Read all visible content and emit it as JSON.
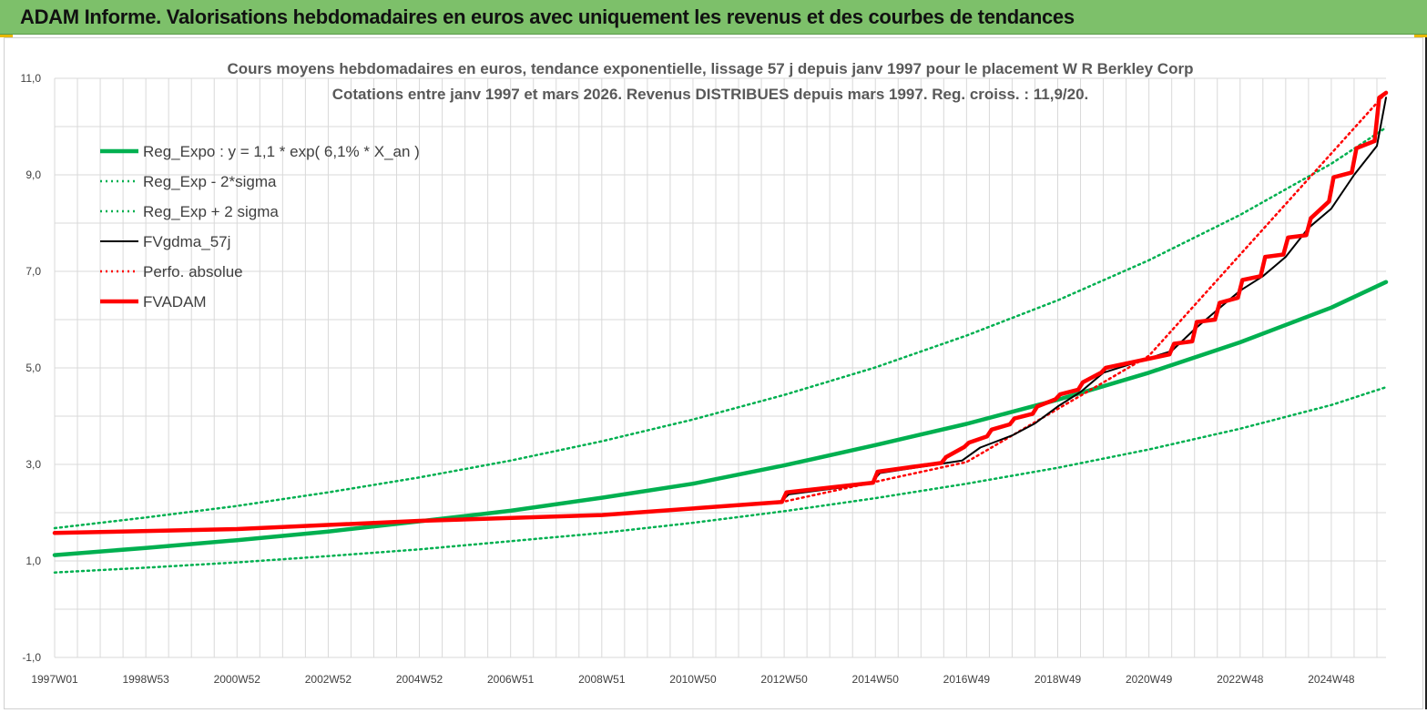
{
  "header": {
    "title": "ADAM Informe. Valorisations hebdomadaires en euros avec uniquement les revenus et des courbes de tendances"
  },
  "chart_data": {
    "type": "line",
    "title": "Cours moyens hebdomadaires en euros, tendance exponentielle, lissage 57 j depuis janv 1997 pour le placement W R Berkley Corp",
    "subtitle": "Cotations entre janv 1997 et mars 2026. Revenus DISTRIBUES depuis mars 1997. Reg. croiss. : 11,9/20.",
    "xlabel": "",
    "ylabel": "",
    "ylim": [
      -1.0,
      11.0
    ],
    "xlim": [
      0,
      29.2
    ],
    "y_ticks": [
      "-1,0",
      "1,0",
      "3,0",
      "5,0",
      "7,0",
      "9,0",
      "11,0"
    ],
    "y_tick_values": [
      -1,
      1,
      3,
      5,
      7,
      9,
      11
    ],
    "x_ticks": [
      "1997W01",
      "1998W53",
      "2000W52",
      "2002W52",
      "2004W52",
      "2006W51",
      "2008W51",
      "2010W50",
      "2012W50",
      "2014W50",
      "2016W49",
      "2018W49",
      "2020W49",
      "2022W48",
      "2024W48"
    ],
    "x_tick_values": [
      0,
      2,
      4,
      6,
      8,
      10,
      12,
      14,
      16,
      18,
      20,
      22,
      24,
      26,
      28
    ],
    "grid": true,
    "legend_position": "top-left",
    "series": [
      {
        "name": "Reg_Expo : y = 1,1 * exp( 6,1% *  X_an )",
        "color": "#00b050",
        "style": "solid-thick",
        "x": [
          0,
          2,
          4,
          6,
          8,
          10,
          12,
          14,
          16,
          18,
          20,
          22,
          24,
          26,
          28,
          29.2
        ],
        "y": [
          1.12,
          1.27,
          1.43,
          1.61,
          1.82,
          2.04,
          2.31,
          2.6,
          2.98,
          3.4,
          3.84,
          4.34,
          4.9,
          5.53,
          6.25,
          6.78
        ]
      },
      {
        "name": "Reg_Exp - 2*sigma",
        "color": "#00b050",
        "style": "dotted",
        "x": [
          0,
          2,
          4,
          6,
          8,
          10,
          12,
          14,
          16,
          18,
          20,
          22,
          24,
          26,
          28,
          29.2
        ],
        "y": [
          0.76,
          0.86,
          0.97,
          1.1,
          1.24,
          1.41,
          1.58,
          1.79,
          2.03,
          2.3,
          2.6,
          2.93,
          3.31,
          3.74,
          4.23,
          4.6
        ]
      },
      {
        "name": "Reg_Exp + 2 sigma",
        "color": "#00b050",
        "style": "dotted",
        "x": [
          0,
          2,
          4,
          6,
          8,
          10,
          12,
          14,
          16,
          18,
          20,
          22,
          24,
          26,
          28,
          29.2
        ],
        "y": [
          1.68,
          1.9,
          2.14,
          2.42,
          2.73,
          3.08,
          3.48,
          3.93,
          4.44,
          5.01,
          5.67,
          6.4,
          7.23,
          8.17,
          9.23,
          9.98
        ]
      },
      {
        "name": "FVgdma_57j",
        "color": "#000000",
        "style": "solid",
        "x": [
          0,
          4,
          8,
          12,
          15.9,
          16.1,
          17.9,
          18.1,
          19.9,
          20.3,
          21,
          21.5,
          22,
          22.5,
          23,
          23.5,
          24.5,
          25,
          25.5,
          26,
          26.5,
          27,
          27.5,
          28,
          28.5,
          29,
          29.2
        ],
        "y": [
          1.58,
          1.66,
          1.83,
          1.95,
          2.2,
          2.38,
          2.6,
          2.82,
          3.08,
          3.35,
          3.6,
          3.85,
          4.2,
          4.5,
          4.9,
          5.05,
          5.35,
          5.8,
          6.2,
          6.6,
          6.9,
          7.3,
          7.9,
          8.3,
          9.0,
          9.6,
          10.6
        ]
      },
      {
        "name": "Perfo. absolue",
        "color": "#ff0000",
        "style": "dotted",
        "x": [
          0,
          4,
          8,
          12,
          16,
          20,
          24,
          29.2
        ],
        "y": [
          1.58,
          1.67,
          1.84,
          1.96,
          2.23,
          3.05,
          5.25,
          10.7
        ]
      },
      {
        "name": "FVADAM",
        "color": "#ff0000",
        "style": "solid-thick",
        "x": [
          0,
          4,
          8,
          12,
          15.95,
          16.05,
          17.95,
          18.05,
          19.45,
          19.55,
          19.95,
          20.05,
          20.45,
          20.55,
          20.95,
          21.05,
          21.45,
          21.55,
          21.95,
          22.05,
          22.45,
          22.55,
          22.95,
          23.05,
          24.45,
          24.55,
          24.95,
          25.05,
          25.45,
          25.55,
          25.95,
          26.05,
          26.45,
          26.55,
          26.95,
          27.05,
          27.45,
          27.55,
          27.95,
          28.05,
          28.45,
          28.55,
          28.95,
          29.05,
          29.2
        ],
        "y": [
          1.58,
          1.66,
          1.83,
          1.95,
          2.22,
          2.42,
          2.62,
          2.85,
          3.03,
          3.15,
          3.36,
          3.45,
          3.58,
          3.72,
          3.83,
          3.95,
          4.05,
          4.2,
          4.35,
          4.45,
          4.55,
          4.7,
          4.9,
          5.0,
          5.28,
          5.5,
          5.55,
          5.95,
          6.0,
          6.35,
          6.45,
          6.82,
          6.9,
          7.3,
          7.35,
          7.7,
          7.75,
          8.1,
          8.45,
          8.95,
          9.05,
          9.55,
          9.7,
          10.6,
          10.7
        ]
      }
    ]
  }
}
